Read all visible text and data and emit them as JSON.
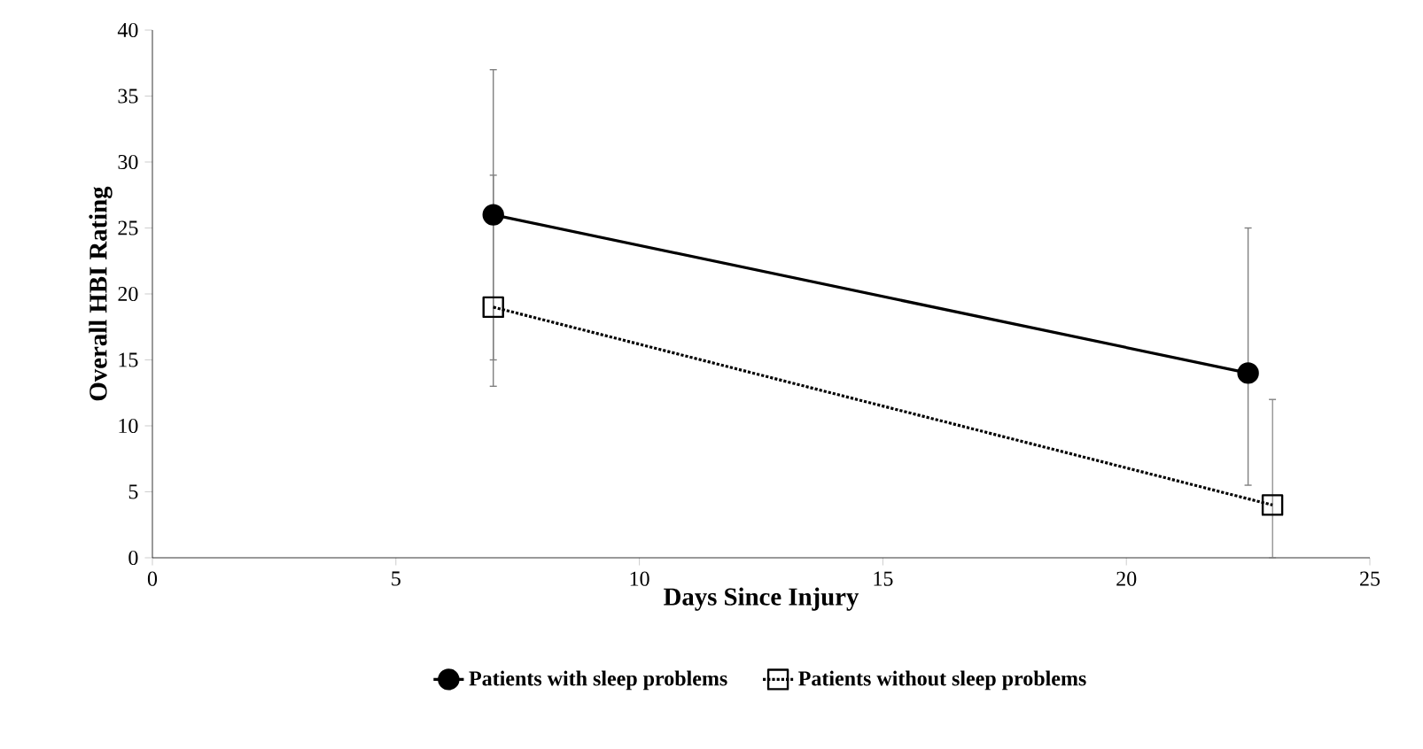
{
  "chart_data": {
    "type": "line",
    "xlabel": "Days Since Injury",
    "ylabel": "Overall HBI Rating",
    "xlim": [
      0,
      25
    ],
    "xticks": [
      0,
      5,
      10,
      15,
      20,
      25
    ],
    "ylim": [
      0,
      40
    ],
    "yticks": [
      0,
      5,
      10,
      15,
      20,
      25,
      30,
      35,
      40
    ],
    "legend": "bottom",
    "grid": false,
    "series": [
      {
        "name": "Patients with sleep problems",
        "color": "#000000",
        "marker": "circle",
        "line_style": "solid",
        "x": [
          7,
          22.5
        ],
        "values": [
          26,
          14
        ],
        "errors": [
          [
            15,
            37
          ],
          [
            5.5,
            25
          ]
        ]
      },
      {
        "name": "Patients without sleep problems",
        "color": "#000000",
        "marker": "square",
        "line_style": "dotted",
        "x": [
          7,
          23
        ],
        "values": [
          19,
          4
        ],
        "errors": [
          [
            13,
            29
          ],
          [
            0,
            12
          ]
        ]
      }
    ]
  }
}
